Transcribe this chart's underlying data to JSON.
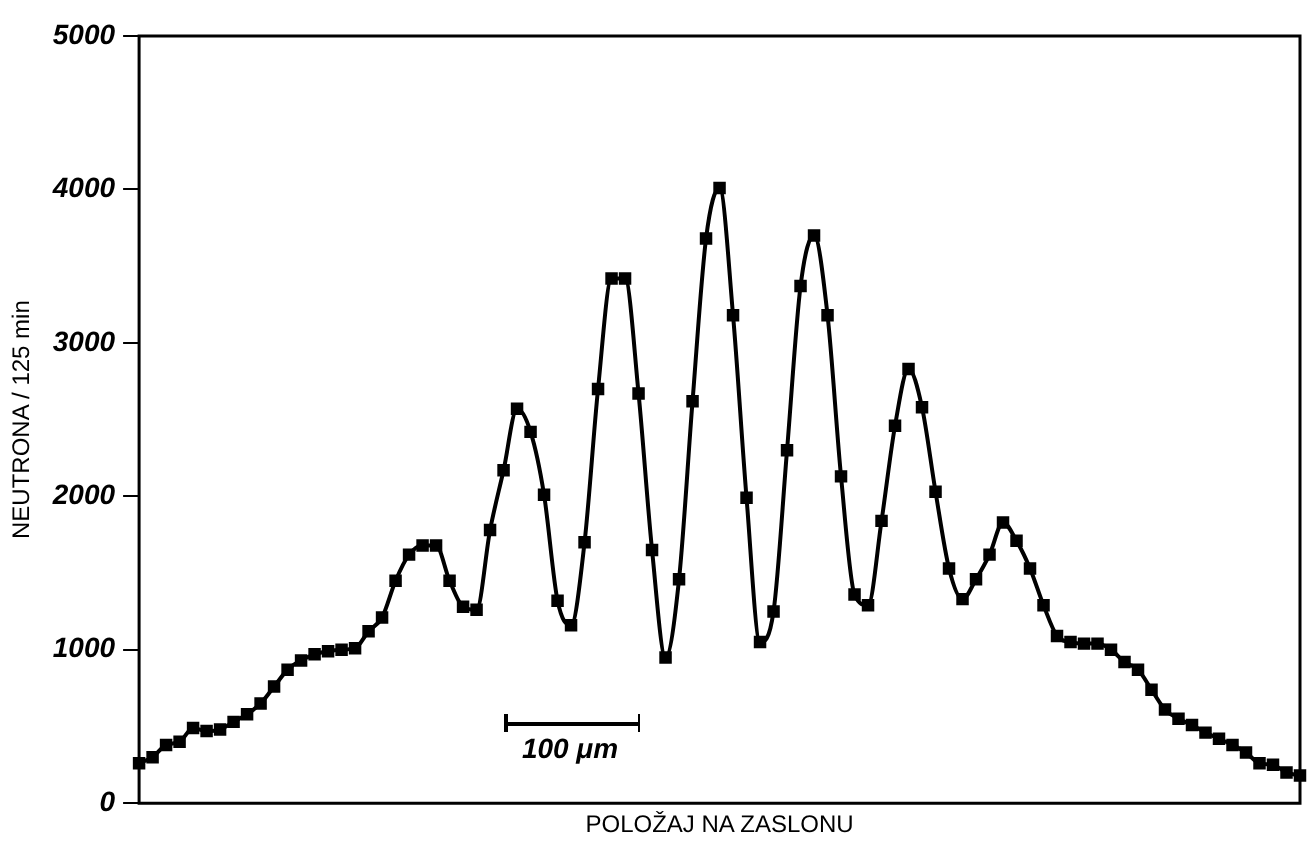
{
  "chart_data": {
    "type": "line",
    "xlabel": "POLOŽAJ NA ZASLONU",
    "ylabel": "NEUTRONA / 125 min",
    "annotations": [
      "100 μm"
    ],
    "marker": "square",
    "line_style": "solid",
    "legend": false,
    "grid": false,
    "tick_labels": "y",
    "ylim": [
      0,
      5000
    ],
    "yticks": [
      0,
      1000,
      2000,
      3000,
      4000,
      5000
    ],
    "categories": [
      null,
      null,
      null,
      null,
      null,
      null,
      null,
      null,
      null,
      null,
      null,
      null,
      null,
      null,
      null,
      null,
      null,
      null,
      null,
      null,
      null,
      null,
      null,
      null,
      null,
      null,
      null,
      null,
      null,
      null,
      null,
      null,
      null,
      null,
      null,
      null,
      null,
      null,
      null,
      null,
      null,
      null,
      null,
      null,
      null,
      null,
      null,
      null,
      null,
      null,
      null,
      null,
      null,
      null,
      null,
      null,
      null,
      null,
      null,
      null,
      null,
      null,
      null,
      null,
      null,
      null,
      null,
      null,
      null,
      null,
      null,
      null,
      null,
      null,
      null,
      null,
      null,
      null,
      null,
      null,
      null,
      null,
      null,
      null,
      null,
      null,
      null
    ],
    "series": [
      {
        "color": "#000000",
        "values": [
          260,
          300,
          380,
          400,
          490,
          470,
          480,
          530,
          580,
          650,
          760,
          870,
          930,
          970,
          990,
          1000,
          1010,
          1120,
          1210,
          1450,
          1620,
          1680,
          1680,
          1450,
          1280,
          1260,
          1780,
          2170,
          2570,
          2420,
          2010,
          1320,
          1160,
          1700,
          2700,
          3420,
          3420,
          2670,
          1650,
          950,
          1460,
          2620,
          3680,
          4010,
          3180,
          1990,
          1050,
          1250,
          2300,
          3370,
          3700,
          3180,
          2130,
          1360,
          1290,
          1840,
          2460,
          2830,
          2580,
          2030,
          1530,
          1330,
          1460,
          1620,
          1830,
          1710,
          1530,
          1290,
          1090,
          1050,
          1040,
          1040,
          1000,
          920,
          870,
          740,
          610,
          550,
          510,
          460,
          420,
          380,
          330,
          260,
          250,
          200,
          180
        ]
      }
    ]
  }
}
